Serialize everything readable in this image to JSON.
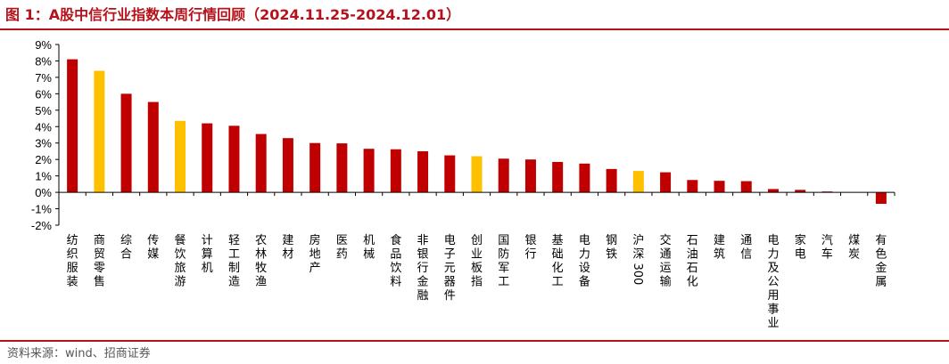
{
  "header": {
    "title": "图 1：A股中信行业指数本周行情回顾（2024.11.25-2024.12.01）"
  },
  "footer": {
    "source": "资料来源：wind、招商证券"
  },
  "colors": {
    "accent": "#b5121b",
    "bar_default": "#c00000",
    "bar_highlight": "#ffc000"
  },
  "chart_data": {
    "type": "bar",
    "title": "",
    "xlabel": "",
    "ylabel": "",
    "ylim": [
      -2,
      9
    ],
    "yticks": [
      9,
      8,
      7,
      6,
      5,
      4,
      3,
      2,
      1,
      0,
      -1,
      -2
    ],
    "ytick_labels": [
      "9%",
      "8%",
      "7%",
      "6%",
      "5%",
      "4%",
      "3%",
      "2%",
      "1%",
      "0%",
      "-1%",
      "-2%"
    ],
    "grid": false,
    "categories": [
      "纺织服装",
      "商贸零售",
      "综合",
      "传媒",
      "餐饮旅游",
      "计算机",
      "轻工制造",
      "农林牧渔",
      "建材",
      "房地产",
      "医药",
      "机械",
      "食品饮料",
      "非银行金融",
      "电子元器件",
      "创业板指",
      "国防军工",
      "银行",
      "基础化工",
      "电力设备",
      "钢铁",
      "沪深300",
      "交通运输",
      "石油石化",
      "建筑",
      "通信",
      "电力及公用事业",
      "家电",
      "汽车",
      "煤炭",
      "有色金属"
    ],
    "values": [
      8.1,
      7.4,
      6.0,
      5.5,
      4.35,
      4.2,
      4.05,
      3.55,
      3.3,
      3.0,
      2.98,
      2.65,
      2.62,
      2.5,
      2.25,
      2.2,
      2.05,
      2.0,
      1.85,
      1.75,
      1.42,
      1.3,
      1.22,
      0.75,
      0.7,
      0.68,
      0.2,
      0.15,
      0.05,
      0.0,
      -0.7
    ],
    "highlighted": [
      "商贸零售",
      "餐饮旅游",
      "创业板指",
      "沪深300"
    ]
  }
}
